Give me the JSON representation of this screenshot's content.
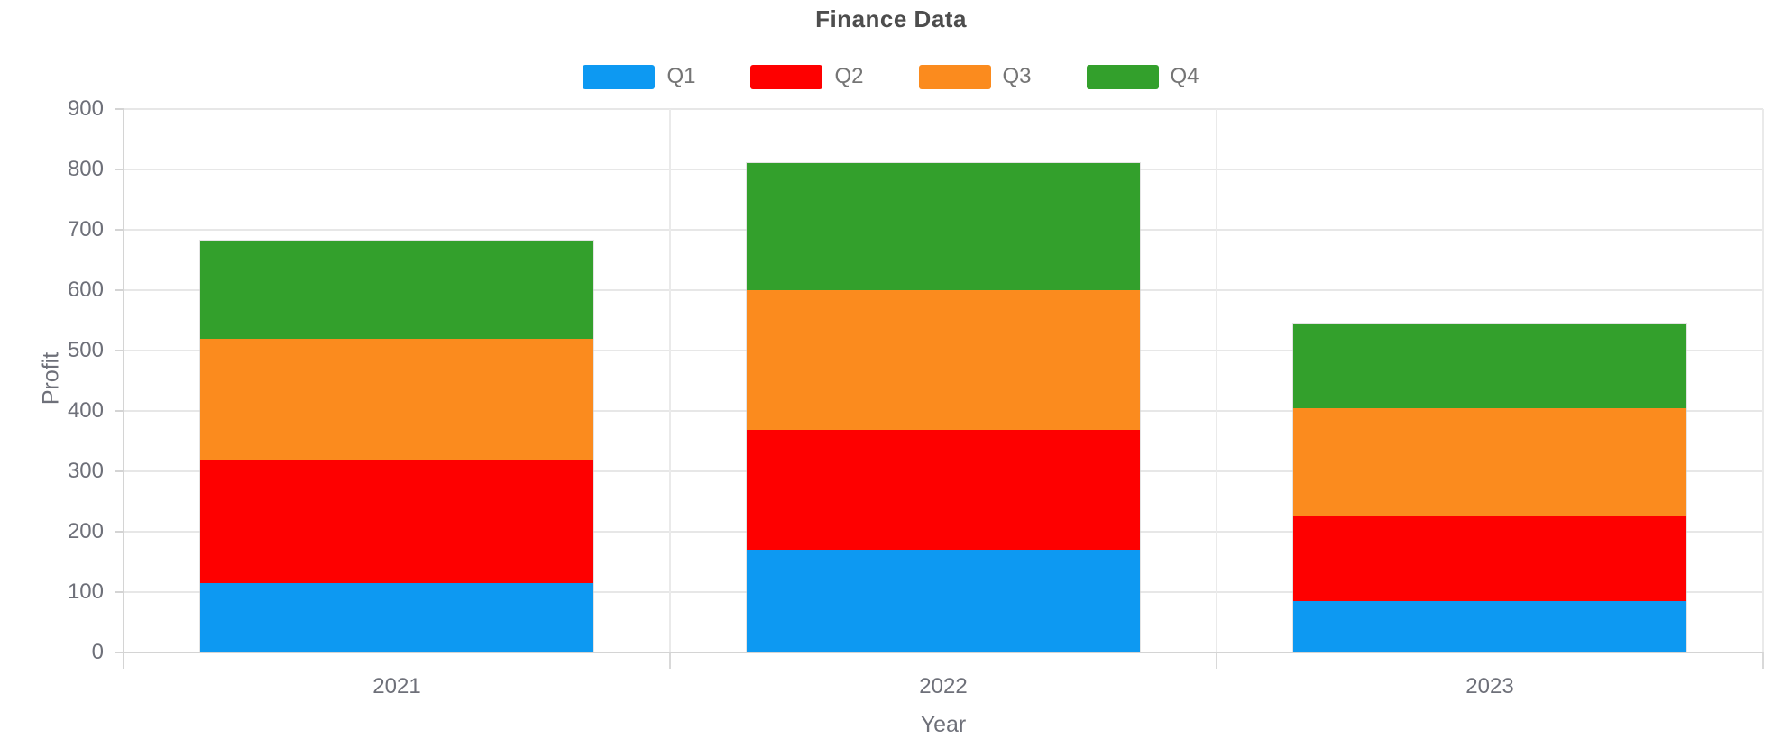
{
  "chart_data": {
    "type": "bar",
    "stacked": true,
    "title": "Finance Data",
    "xlabel": "Year",
    "ylabel": "Profit",
    "categories": [
      "2021",
      "2022",
      "2023"
    ],
    "series": [
      {
        "name": "Q1",
        "color": "#0d99f2",
        "values": [
          115,
          170,
          85
        ]
      },
      {
        "name": "Q2",
        "color": "#fe0000",
        "values": [
          205,
          198,
          140
        ]
      },
      {
        "name": "Q3",
        "color": "#fb8b1e",
        "values": [
          200,
          232,
          180
        ]
      },
      {
        "name": "Q4",
        "color": "#33a02c",
        "values": [
          162,
          210,
          140
        ]
      }
    ],
    "totals": [
      682,
      810,
      545
    ],
    "ylim": [
      0,
      900
    ],
    "ytick_step": 100,
    "ytick_labels": [
      "0",
      "100",
      "200",
      "300",
      "400",
      "500",
      "600",
      "700",
      "800",
      "900"
    ],
    "grid": true,
    "legend_position": "top",
    "colors": {
      "title_text": "#4d4d4d",
      "legend_text": "#757575",
      "tick_text": "#6e7079",
      "gridline": "#e7e7e7",
      "axis_line": "#d4d4d4",
      "background": "#ffffff"
    }
  }
}
